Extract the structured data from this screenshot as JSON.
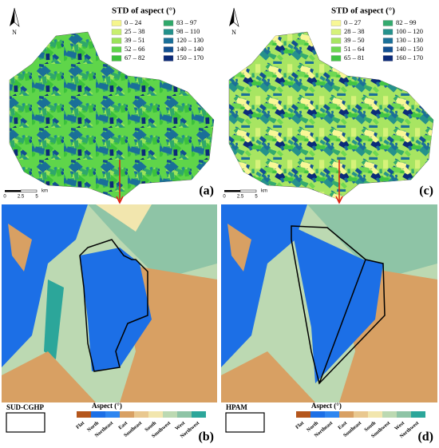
{
  "top_panels": [
    {
      "label": "(a)",
      "legend_title": "STD of aspect (°)",
      "north": "N",
      "scale": [
        "0",
        "2.5",
        "5"
      ],
      "scale_unit": "km",
      "legend_items": [
        {
          "label": "0 – 24",
          "color": "#f5f58c"
        },
        {
          "label": "25 – 38",
          "color": "#c8ef6e"
        },
        {
          "label": "39 – 51",
          "color": "#9be35a"
        },
        {
          "label": "52 – 66",
          "color": "#5fd54a"
        },
        {
          "label": "67 – 82",
          "color": "#3cc13c"
        },
        {
          "label": "83 – 97",
          "color": "#2fa86a"
        },
        {
          "label": "98 – 110",
          "color": "#22908a"
        },
        {
          "label": "120 – 130",
          "color": "#1a6f98"
        },
        {
          "label": "140 – 140",
          "color": "#124f90"
        },
        {
          "label": "150 – 170",
          "color": "#0b2a78"
        }
      ]
    },
    {
      "label": "(c)",
      "legend_title": "STD of aspect (°)",
      "north": "N",
      "scale": [
        "0",
        "2.5",
        "5"
      ],
      "scale_unit": "km",
      "legend_items": [
        {
          "label": "0 – 27",
          "color": "#f8f796"
        },
        {
          "label": "28 – 38",
          "color": "#d6f27a"
        },
        {
          "label": "39 – 50",
          "color": "#a8e562"
        },
        {
          "label": "51 – 64",
          "color": "#6fd852"
        },
        {
          "label": "65 – 81",
          "color": "#42c444"
        },
        {
          "label": "82 – 99",
          "color": "#34aa6e"
        },
        {
          "label": "100 – 120",
          "color": "#25918c"
        },
        {
          "label": "130 – 130",
          "color": "#1b7098"
        },
        {
          "label": "140 – 150",
          "color": "#135092"
        },
        {
          "label": "160 – 170",
          "color": "#0b2b7a"
        }
      ]
    }
  ],
  "bottom_panels": [
    {
      "label": "(b)",
      "method": "SUD-CGHP",
      "aspect_title": "Aspect (°)"
    },
    {
      "label": "(d)",
      "method": "HPAM",
      "aspect_title": "Aspect (°)"
    }
  ],
  "aspect_classes": [
    {
      "name": "Flat",
      "color": "#b4561c"
    },
    {
      "name": "North",
      "color": "#1c6fe6"
    },
    {
      "name": "Northeast",
      "color": "#2f86f0"
    },
    {
      "name": "East",
      "color": "#d8a063"
    },
    {
      "name": "Southeast",
      "color": "#e9c890"
    },
    {
      "name": "South",
      "color": "#f2e6ae"
    },
    {
      "name": "Southwest",
      "color": "#bcd9b2"
    },
    {
      "name": "West",
      "color": "#8ec4a6"
    },
    {
      "name": "Northwest",
      "color": "#2ca69a"
    }
  ]
}
